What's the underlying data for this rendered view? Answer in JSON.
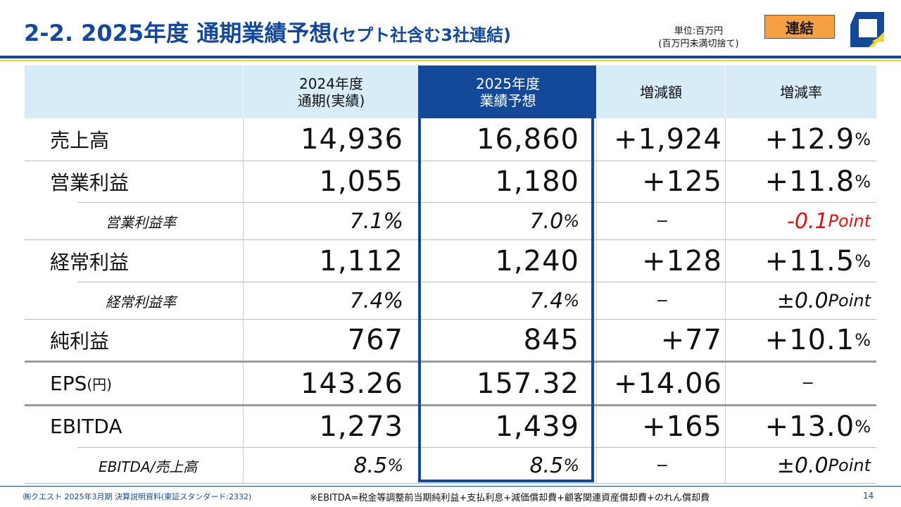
{
  "header": {
    "title_main": "2-2. 2025年度 通期業績予想",
    "title_sub": "(セプト社含む3社連結)",
    "unit_line1": "単位:百万円",
    "unit_line2": "(百万円未満切捨て)",
    "badge": "連結",
    "logo_icon": "company-logo-icon"
  },
  "table": {
    "columns": [
      {
        "line1": "",
        "line2": ""
      },
      {
        "line1": "2024年度",
        "line2": "通期(実績)"
      },
      {
        "line1": "2025年度",
        "line2": "業績予想"
      },
      {
        "line1": "増減額",
        "line2": ""
      },
      {
        "line1": "増減率",
        "line2": ""
      }
    ],
    "rows": [
      {
        "label": "売上高",
        "label_note": "",
        "prev": "14,936",
        "prev_unit": "",
        "fcst": "16,860",
        "fcst_unit": "",
        "diff": "+1,924",
        "rate": "+12.9",
        "rate_unit": "%"
      },
      {
        "label": "営業利益",
        "label_note": "",
        "prev": "1,055",
        "prev_unit": "",
        "fcst": "1,180",
        "fcst_unit": "",
        "diff": "+125",
        "rate": "+11.8",
        "rate_unit": "%"
      },
      {
        "label": "営業利益率",
        "label_note": "",
        "prev": "7.1",
        "prev_unit": "%",
        "fcst": "7.0",
        "fcst_unit": "%",
        "diff": "−",
        "rate": "-0.1",
        "rate_unit": "Point"
      },
      {
        "label": "経常利益",
        "label_note": "",
        "prev": "1,112",
        "prev_unit": "",
        "fcst": "1,240",
        "fcst_unit": "",
        "diff": "+128",
        "rate": "+11.5",
        "rate_unit": "%"
      },
      {
        "label": "経常利益率",
        "label_note": "",
        "prev": "7.4",
        "prev_unit": "%",
        "fcst": "7.4",
        "fcst_unit": "%",
        "diff": "−",
        "rate": "±0.0",
        "rate_unit": "Point"
      },
      {
        "label": "純利益",
        "label_note": "",
        "prev": "767",
        "prev_unit": "",
        "fcst": "845",
        "fcst_unit": "",
        "diff": "+77",
        "rate": "+10.1",
        "rate_unit": "%"
      },
      {
        "label": "EPS",
        "label_note": "(円)",
        "prev": "143.26",
        "prev_unit": "",
        "fcst": "157.32",
        "fcst_unit": "",
        "diff": "+14.06",
        "rate": "−",
        "rate_unit": ""
      },
      {
        "label": "EBITDA",
        "label_note": "",
        "prev": "1,273",
        "prev_unit": "",
        "fcst": "1,439",
        "fcst_unit": "",
        "diff": "+165",
        "rate": "+13.0",
        "rate_unit": "%"
      },
      {
        "label": "EBITDA/売上高",
        "label_note": "",
        "prev": "8.5",
        "prev_unit": "%",
        "fcst": "8.5",
        "fcst_unit": "%",
        "diff": "−",
        "rate": "±0.0",
        "rate_unit": "Point"
      }
    ]
  },
  "footer": {
    "left": "㈱クエスト 2025年3月期 決算説明資料(東証スタンダード:2332)",
    "note": "※EBITDA=税金等調整前当期純利益+支払利息+減価償却費+顧客関連資産償却費+のれん償却費",
    "page": "14"
  }
}
